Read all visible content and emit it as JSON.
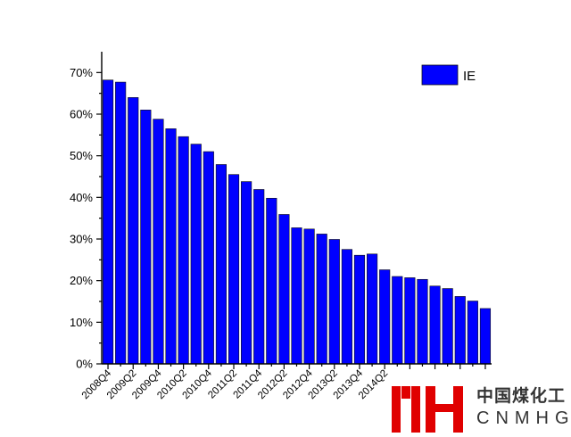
{
  "chart_data": {
    "type": "bar",
    "title": "",
    "xlabel": "",
    "ylabel": "",
    "ylim": [
      0,
      75
    ],
    "yticks": [
      "0%",
      "10%",
      "20%",
      "30%",
      "40%",
      "50%",
      "60%",
      "70%"
    ],
    "categories": [
      "2008Q4",
      "2009Q1",
      "2009Q2",
      "2009Q3",
      "2009Q4",
      "2010Q1",
      "2010Q2",
      "2010Q3",
      "2010Q4",
      "2011Q1",
      "2011Q2",
      "2011Q3",
      "2011Q4",
      "2012Q1",
      "2012Q2",
      "2012Q3",
      "2012Q4",
      "2013Q1",
      "2013Q2",
      "2013Q3",
      "2013Q4",
      "2014Q1",
      "2014Q2",
      "2014Q3",
      "2014Q4",
      "2015Q1",
      "2015Q2",
      "2015Q3",
      "2015Q4",
      "2016Q1",
      "2016Q2"
    ],
    "xtick_labels": [
      "2008Q4",
      "2009Q2",
      "2009Q4",
      "2010Q2",
      "2010Q4",
      "2011Q2",
      "2011Q4",
      "2012Q2",
      "2012Q4",
      "2013Q2",
      "2013Q4",
      "2014Q2"
    ],
    "series": [
      {
        "name": "IE",
        "color": "#0000ff",
        "values": [
          68.2,
          67.7,
          64.0,
          61.0,
          58.8,
          56.5,
          54.6,
          52.8,
          51.0,
          47.9,
          45.5,
          43.8,
          41.9,
          39.8,
          35.9,
          32.7,
          32.4,
          31.2,
          29.9,
          27.5,
          26.1,
          26.4,
          22.6,
          21.0,
          20.7,
          20.3,
          18.7,
          18.1,
          16.2,
          15.1,
          13.3
        ]
      }
    ],
    "legend": {
      "position": "top-right",
      "labels": [
        "IE"
      ]
    }
  },
  "watermark": {
    "chinese_text": "中国煤化工",
    "english_text": "CNMHG",
    "logo_color": "#e00000"
  }
}
